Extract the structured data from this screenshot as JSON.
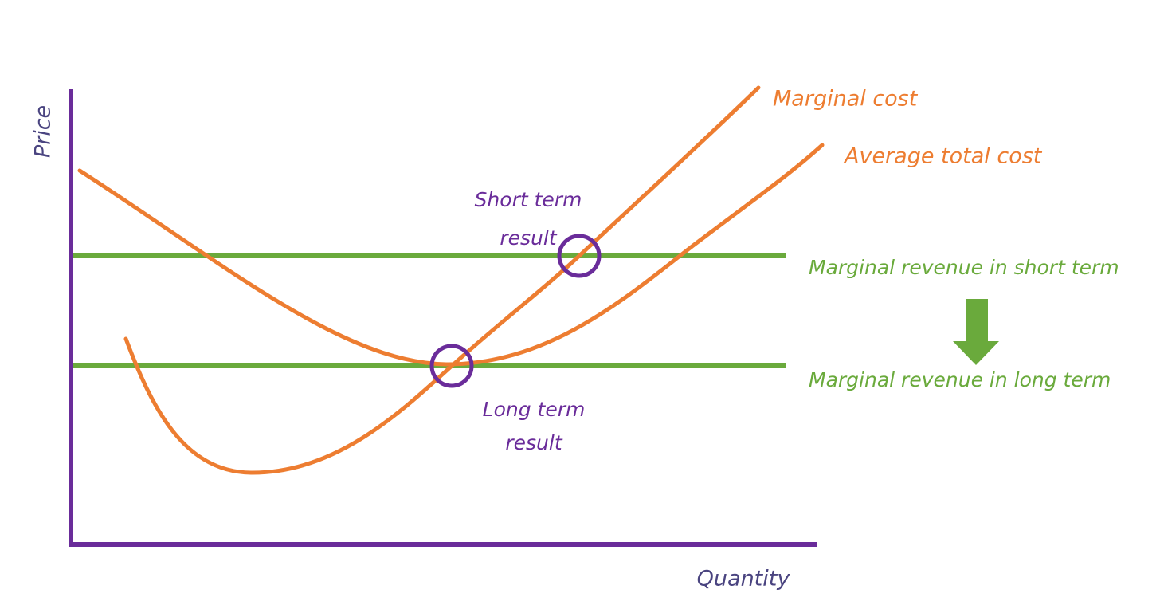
{
  "axes": {
    "y_label": "Price",
    "x_label": "Quantity"
  },
  "curves": {
    "marginal_cost": "Marginal cost",
    "average_total_cost": "Average total cost"
  },
  "revenue_lines": {
    "short_term": "Marginal revenue in short term",
    "long_term": "Marginal revenue in long term"
  },
  "results": {
    "short_term": [
      "Short term",
      "result"
    ],
    "long_term": [
      "Long term",
      "result"
    ]
  }
}
